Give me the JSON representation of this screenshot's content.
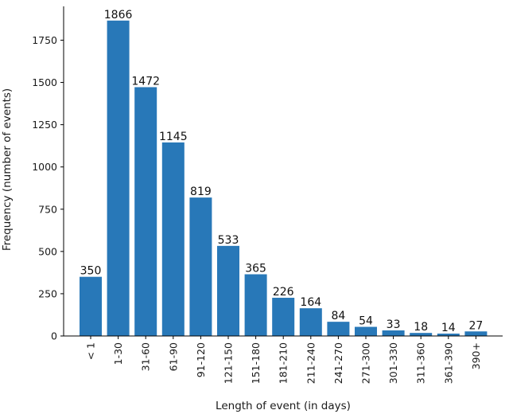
{
  "chart_data": {
    "type": "bar",
    "title": "",
    "xlabel": "Length of event (in days)",
    "ylabel": "Frequency (number of events)",
    "categories": [
      "< 1",
      "1-30",
      "31-60",
      "61-90",
      "91-120",
      "121-150",
      "151-180",
      "181-210",
      "211-240",
      "241-270",
      "271-300",
      "301-330",
      "311-360",
      "361-390",
      "390+"
    ],
    "values": [
      350,
      1866,
      1472,
      1145,
      819,
      533,
      365,
      226,
      164,
      84,
      54,
      33,
      18,
      14,
      27
    ],
    "ylim": [
      0,
      1950
    ],
    "yticks": [
      0,
      250,
      500,
      750,
      1000,
      1250,
      1500,
      1750
    ],
    "grid": false,
    "legend": "none",
    "bar_color": "#2878b8"
  }
}
